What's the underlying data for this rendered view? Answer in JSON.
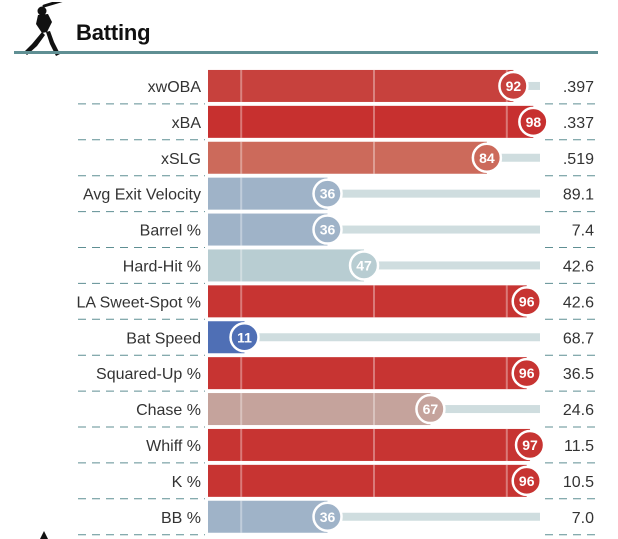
{
  "header": {
    "title": "Batting",
    "icon": "baseball-batter-icon",
    "accent_color": "#5f8f93"
  },
  "chart_data": {
    "type": "bar",
    "orientation": "horizontal",
    "title": "Batting",
    "xlim": [
      0,
      100
    ],
    "categories": [
      "xwOBA",
      "xBA",
      "xSLG",
      "Avg Exit Velocity",
      "Barrel %",
      "Hard-Hit %",
      "LA Sweet-Spot %",
      "Bat Speed",
      "Squared-Up %",
      "Chase %",
      "Whiff %",
      "K %",
      "BB %"
    ],
    "percentiles": [
      92,
      98,
      84,
      36,
      36,
      47,
      96,
      11,
      96,
      67,
      97,
      96,
      36
    ],
    "stat_values": [
      ".397",
      ".337",
      ".519",
      "89.1",
      "7.4",
      "42.6",
      "42.6",
      "68.7",
      "36.5",
      "24.6",
      "11.5",
      "10.5",
      "7.0"
    ],
    "colors": [
      "#c7413d",
      "#c7302f",
      "#cc6a5b",
      "#9fb3c8",
      "#9fb3c8",
      "#b8cdd2",
      "#c73432",
      "#4f6fb5",
      "#c73432",
      "#c5a39c",
      "#c73432",
      "#c73432",
      "#9fb3c8"
    ],
    "track_color": "#cfdddf",
    "grid": true,
    "gridlines_at": [
      10,
      50,
      90
    ]
  }
}
